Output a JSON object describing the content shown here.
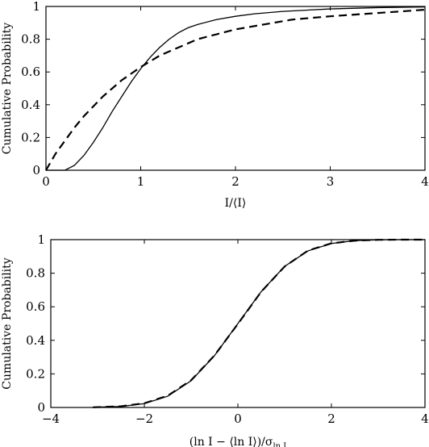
{
  "chart_data": [
    {
      "type": "line",
      "xlabel": "I/⟨I⟩",
      "ylabel": "Cumulative Probability",
      "xlim": [
        0,
        4
      ],
      "ylim": [
        0,
        1
      ],
      "xticks": [
        0,
        1,
        2,
        3,
        4
      ],
      "yticks": [
        0,
        0.2,
        0.4,
        0.6,
        0.8,
        1
      ],
      "grid": false,
      "series": [
        {
          "style": "solid",
          "x": [
            0,
            0.2,
            0.3,
            0.4,
            0.5,
            0.6,
            0.7,
            0.8,
            0.9,
            1.0,
            1.1,
            1.2,
            1.3,
            1.4,
            1.5,
            1.6,
            1.8,
            2.0,
            2.2,
            2.5,
            3.0,
            3.5,
            4.0
          ],
          "y": [
            0,
            0.0,
            0.03,
            0.09,
            0.17,
            0.26,
            0.36,
            0.45,
            0.54,
            0.62,
            0.69,
            0.75,
            0.8,
            0.84,
            0.87,
            0.89,
            0.92,
            0.94,
            0.955,
            0.97,
            0.985,
            0.993,
            0.997
          ]
        },
        {
          "style": "dashed",
          "x": [
            0,
            0.1,
            0.2,
            0.3,
            0.4,
            0.5,
            0.6,
            0.7,
            0.8,
            0.9,
            1.0,
            1.2,
            1.4,
            1.6,
            1.8,
            2.0,
            2.3,
            2.6,
            3.0,
            3.5,
            4.0
          ],
          "y": [
            0,
            0.1,
            0.18,
            0.26,
            0.33,
            0.39,
            0.45,
            0.5,
            0.55,
            0.59,
            0.63,
            0.7,
            0.75,
            0.8,
            0.83,
            0.86,
            0.89,
            0.92,
            0.94,
            0.96,
            0.98
          ]
        }
      ]
    },
    {
      "type": "line",
      "xlabel": "(ln I − ⟨ln I⟩)/σ",
      "xlabel_sub": "ln I",
      "ylabel": "Cumulative Probability",
      "xlim": [
        -4,
        4
      ],
      "ylim": [
        0,
        1
      ],
      "xticks": [
        -4,
        -2,
        0,
        2,
        4
      ],
      "yticks": [
        0,
        0.2,
        0.4,
        0.6,
        0.8,
        1
      ],
      "grid": false,
      "series": [
        {
          "style": "solid",
          "x": [
            -3.1,
            -2.5,
            -2.0,
            -1.5,
            -1.0,
            -0.5,
            0,
            0.5,
            1.0,
            1.5,
            2.0,
            2.5,
            3.0,
            3.5,
            4.0
          ],
          "y": [
            0.001,
            0.006,
            0.023,
            0.067,
            0.159,
            0.309,
            0.5,
            0.691,
            0.841,
            0.933,
            0.977,
            0.994,
            0.999,
            1.0,
            1.0
          ]
        },
        {
          "style": "dashed",
          "x": [
            -3.1,
            -2.5,
            -2.0,
            -1.5,
            -1.0,
            -0.5,
            0,
            0.5,
            1.0,
            1.5,
            2.0,
            2.5,
            3.0,
            3.5,
            4.0
          ],
          "y": [
            0.001,
            0.007,
            0.025,
            0.07,
            0.162,
            0.31,
            0.498,
            0.69,
            0.84,
            0.935,
            0.978,
            0.994,
            0.999,
            1.0,
            1.0
          ]
        }
      ]
    }
  ]
}
